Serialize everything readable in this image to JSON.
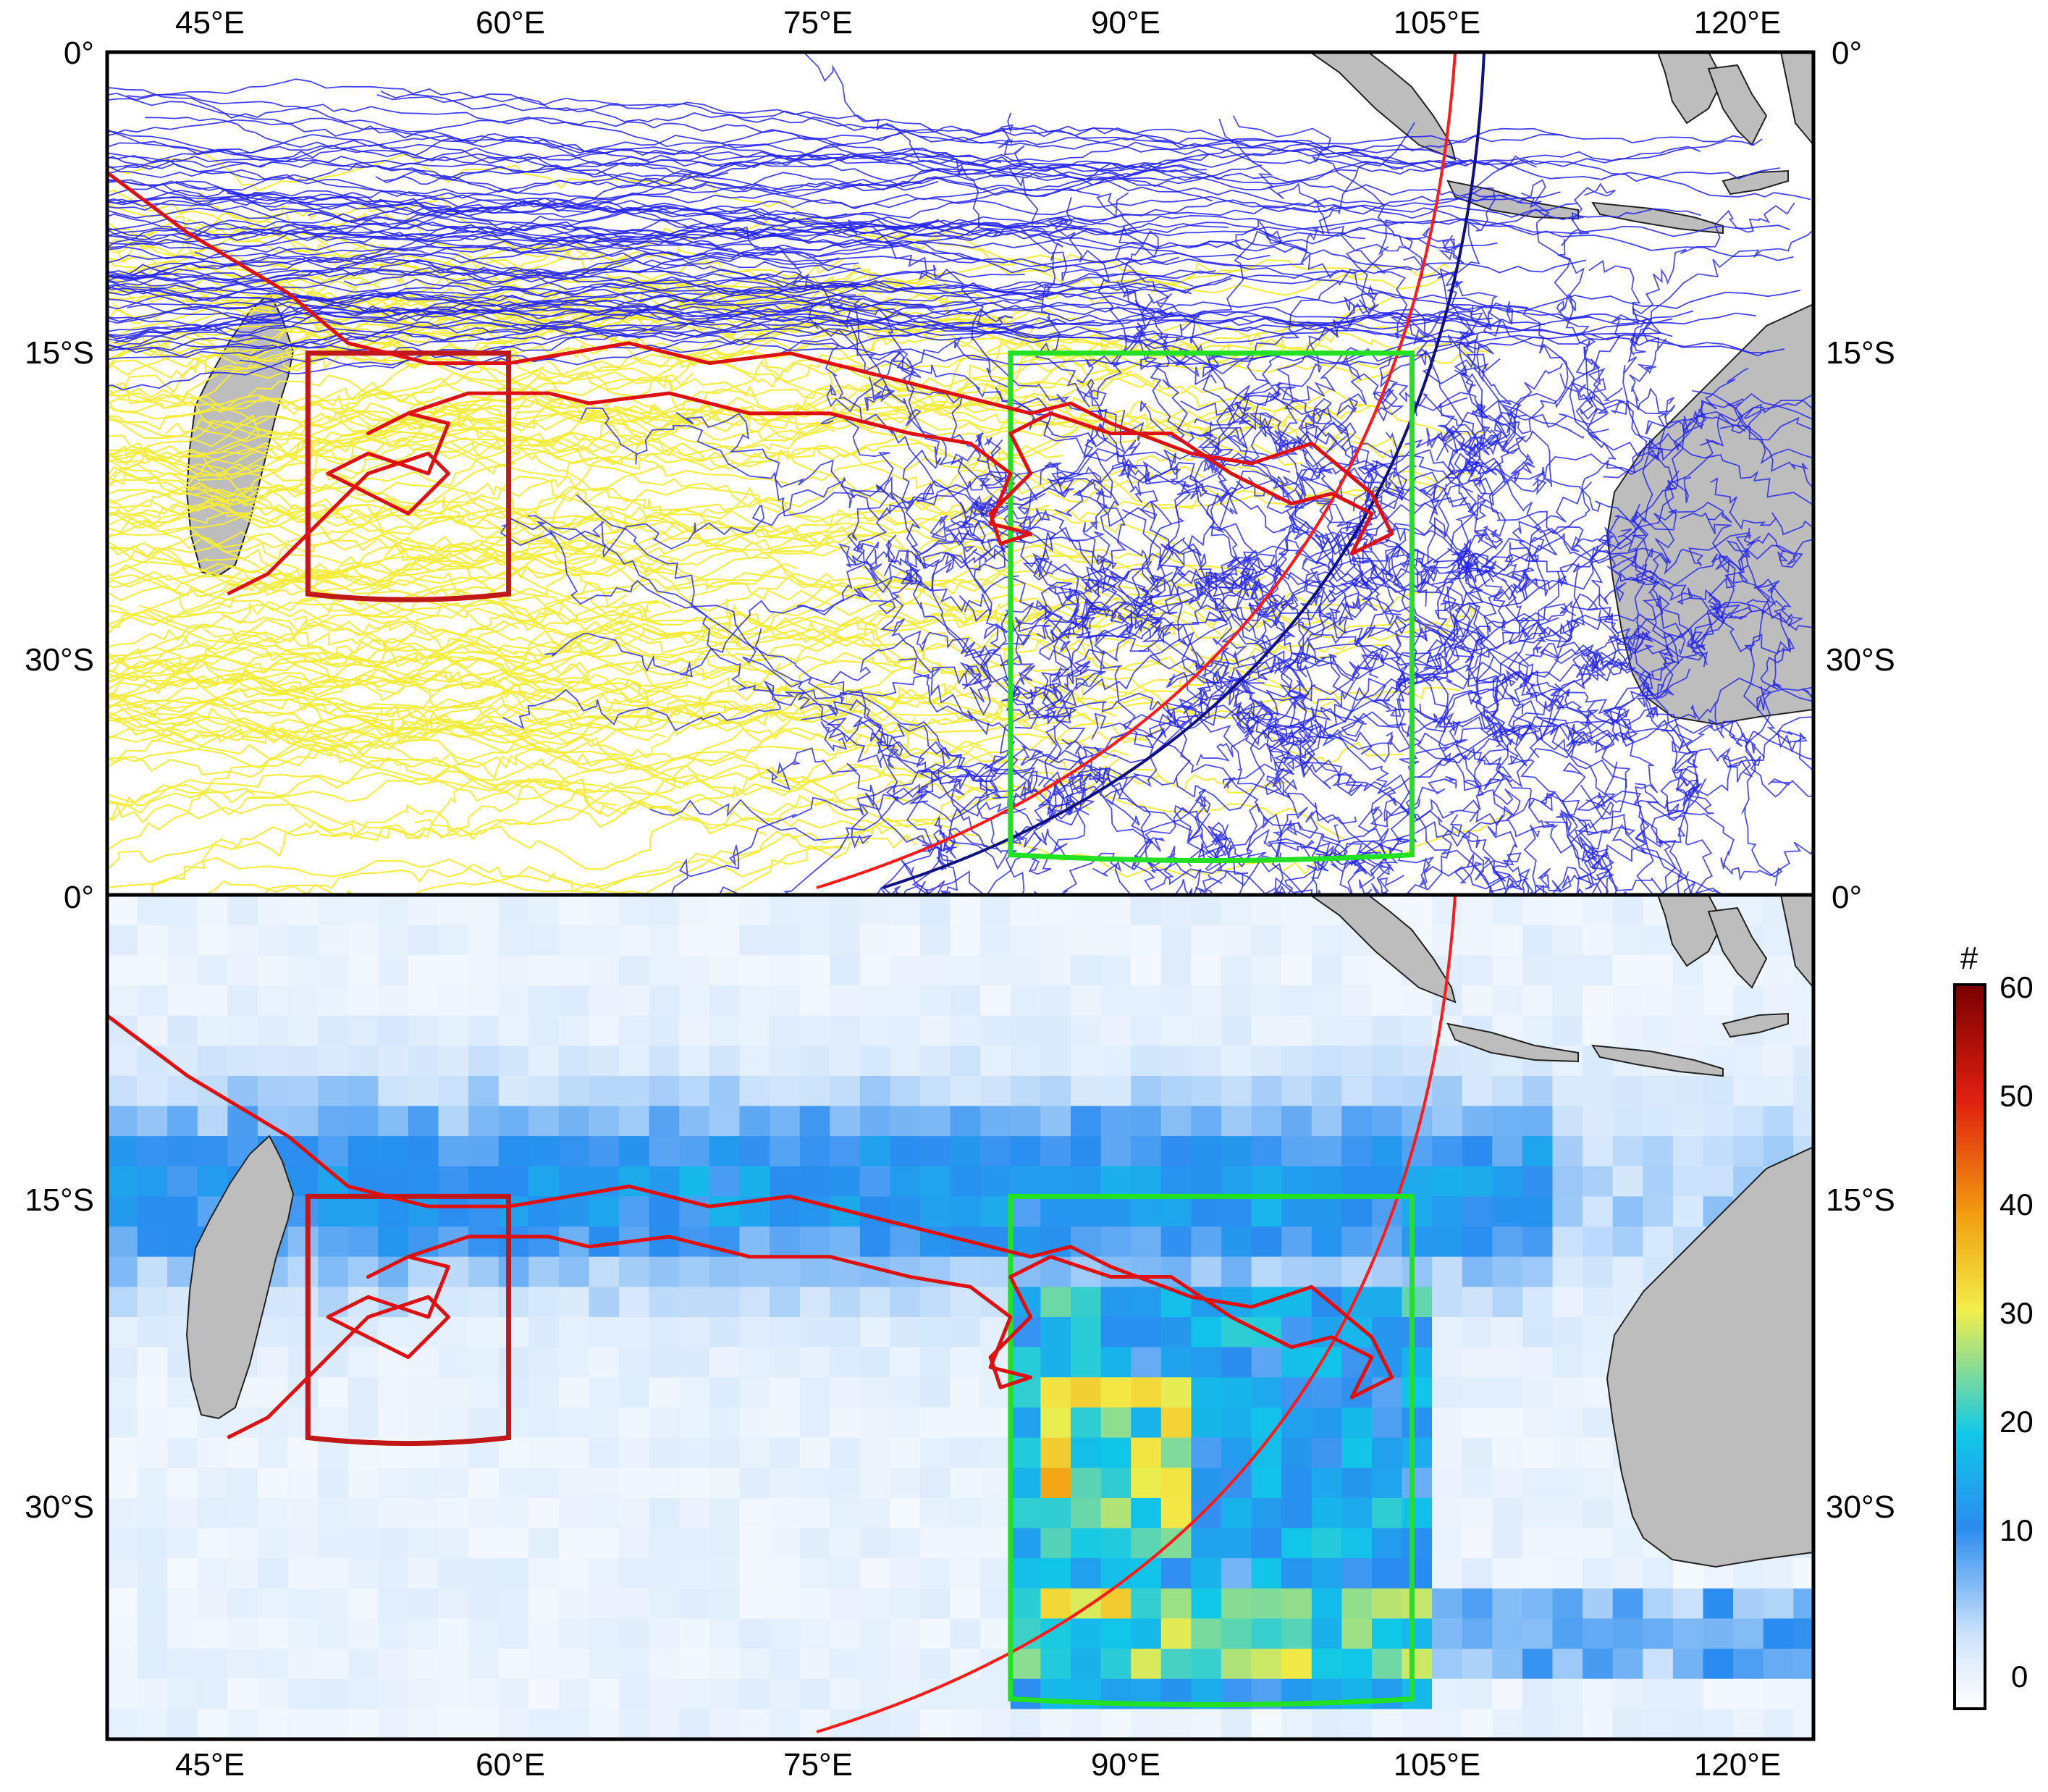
{
  "figure": {
    "panels": [
      "trajectories",
      "density"
    ],
    "lon_ticks": [
      "45°E",
      "60°E",
      "75°E",
      "90°E",
      "105°E",
      "120°E"
    ],
    "lat_ticks_top": [
      "0°",
      "15°S",
      "30°S"
    ],
    "lat_ticks_bottom": [
      "0°",
      "15°S",
      "30°S"
    ],
    "lon_range": [
      40,
      125
    ],
    "lat_range": [
      0,
      -42
    ],
    "colors": {
      "trajectories_blue": "#2222ee",
      "trajectories_yellow": "#f3ec3a",
      "highlight_track": "#dd1111",
      "source_box_west": "#c01818",
      "source_box_east": "#22e022",
      "arc_red": "#ff1a1a",
      "arc_navy": "#101080",
      "land": "#bdbdbd"
    },
    "regions": [
      {
        "name": "west-box",
        "lon": [
          50,
          60
        ],
        "lat": [
          -15,
          -27
        ]
      },
      {
        "name": "east-box",
        "lon": [
          85,
          105
        ],
        "lat": [
          -15,
          -40
        ]
      }
    ]
  },
  "colorbar": {
    "title": "#",
    "ticks": [
      "60",
      "50",
      "40",
      "30",
      "20",
      "10",
      "0"
    ],
    "range": [
      0,
      60
    ],
    "colormap": [
      "#ffffff",
      "#cfe4fb",
      "#2a8cf0",
      "#10c8e8",
      "#f2ee4a",
      "#f2a010",
      "#e02010",
      "#7a0000"
    ]
  }
}
